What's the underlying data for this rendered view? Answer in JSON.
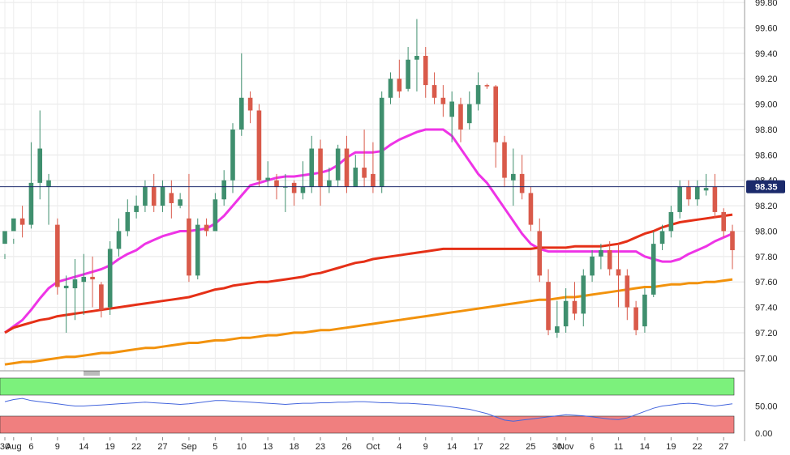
{
  "chart_data": {
    "type": "candlestick",
    "title": "",
    "instrument_price_label": "98.35",
    "y_axis": {
      "min": 96.9,
      "max": 99.82,
      "ticks": [
        "97.00",
        "97.20",
        "97.40",
        "97.60",
        "97.80",
        "98.00",
        "98.20",
        "98.40",
        "98.60",
        "98.80",
        "99.00",
        "99.20",
        "99.40",
        "99.60",
        "99.80"
      ]
    },
    "x_axis": {
      "labels": [
        {
          "label": "30",
          "index": 0
        },
        {
          "label": "Aug",
          "index": 1
        },
        {
          "label": "6",
          "index": 3
        },
        {
          "label": "9",
          "index": 6
        },
        {
          "label": "14",
          "index": 9
        },
        {
          "label": "19",
          "index": 12
        },
        {
          "label": "22",
          "index": 15
        },
        {
          "label": "27",
          "index": 18
        },
        {
          "label": "Sep",
          "index": 21
        },
        {
          "label": "5",
          "index": 24
        },
        {
          "label": "10",
          "index": 27
        },
        {
          "label": "13",
          "index": 30
        },
        {
          "label": "18",
          "index": 33
        },
        {
          "label": "23",
          "index": 36
        },
        {
          "label": "26",
          "index": 39
        },
        {
          "label": "Oct",
          "index": 42
        },
        {
          "label": "4",
          "index": 45
        },
        {
          "label": "9",
          "index": 48
        },
        {
          "label": "14",
          "index": 51
        },
        {
          "label": "17",
          "index": 54
        },
        {
          "label": "22",
          "index": 57
        },
        {
          "label": "25",
          "index": 60
        },
        {
          "label": "30",
          "index": 63
        },
        {
          "label": "Nov",
          "index": 64
        },
        {
          "label": "6",
          "index": 67
        },
        {
          "label": "11",
          "index": 70
        },
        {
          "label": "14",
          "index": 73
        },
        {
          "label": "19",
          "index": 76
        },
        {
          "label": "22",
          "index": 79
        },
        {
          "label": "27",
          "index": 82
        }
      ]
    },
    "candles_ohlc": [
      [
        97.9,
        98.0,
        97.78,
        97.82
      ],
      [
        98.0,
        98.1,
        97.9,
        97.94
      ],
      [
        98.1,
        98.05,
        98.2,
        97.95
      ],
      [
        98.05,
        98.38,
        98.7,
        98.02
      ],
      [
        98.38,
        98.65,
        98.95,
        98.25
      ],
      [
        98.35,
        98.4,
        98.45,
        98.05
      ],
      [
        98.05,
        97.56,
        98.1,
        97.5
      ],
      [
        97.55,
        97.57,
        97.65,
        97.2
      ],
      [
        97.55,
        97.62,
        97.78,
        97.3
      ],
      [
        97.6,
        97.64,
        97.82,
        97.34
      ],
      [
        97.64,
        97.62,
        97.8,
        97.4
      ],
      [
        97.58,
        97.38,
        97.6,
        97.32
      ],
      [
        97.4,
        97.86,
        97.92,
        97.34
      ],
      [
        97.86,
        98.0,
        98.1,
        97.8
      ],
      [
        98.0,
        98.15,
        98.25,
        97.96
      ],
      [
        98.15,
        98.2,
        98.28,
        98.1
      ],
      [
        98.2,
        98.35,
        98.4,
        98.15
      ],
      [
        98.35,
        98.2,
        98.45,
        98.15
      ],
      [
        98.2,
        98.35,
        98.4,
        98.15
      ],
      [
        98.3,
        98.22,
        98.4,
        98.1
      ],
      [
        98.2,
        98.25,
        98.3,
        98.18
      ],
      [
        98.1,
        97.65,
        98.45,
        97.6
      ],
      [
        97.65,
        98.05,
        98.1,
        97.62
      ],
      [
        98.05,
        98.0,
        98.1,
        97.96
      ],
      [
        98.0,
        98.25,
        98.3,
        98.0
      ],
      [
        98.25,
        98.4,
        98.48,
        98.2
      ],
      [
        98.4,
        98.8,
        98.85,
        98.3
      ],
      [
        98.8,
        99.05,
        99.4,
        98.75
      ],
      [
        99.05,
        98.95,
        99.1,
        98.85
      ],
      [
        98.95,
        98.4,
        99.0,
        98.35
      ],
      [
        98.4,
        98.42,
        98.55,
        98.35
      ],
      [
        98.4,
        98.35,
        98.45,
        98.25
      ],
      [
        98.35,
        98.35,
        98.45,
        98.15
      ],
      [
        98.38,
        98.3,
        98.4,
        98.2
      ],
      [
        98.3,
        98.35,
        98.55,
        98.25
      ],
      [
        98.35,
        98.65,
        98.75,
        98.3
      ],
      [
        98.65,
        98.35,
        98.72,
        98.2
      ],
      [
        98.35,
        98.4,
        98.5,
        98.3
      ],
      [
        98.4,
        98.65,
        98.68,
        98.35
      ],
      [
        98.65,
        98.35,
        98.75,
        98.3
      ],
      [
        98.35,
        98.5,
        98.6,
        98.35
      ],
      [
        98.5,
        98.42,
        98.8,
        98.35
      ],
      [
        98.45,
        98.35,
        98.7,
        98.3
      ],
      [
        98.35,
        99.05,
        99.1,
        98.3
      ],
      [
        99.05,
        99.2,
        99.25,
        99.0
      ],
      [
        99.2,
        99.1,
        99.35,
        99.05
      ],
      [
        99.12,
        99.35,
        99.45,
        99.1
      ],
      [
        99.35,
        99.38,
        99.67,
        99.1
      ],
      [
        99.38,
        99.15,
        99.45,
        99.05
      ],
      [
        99.15,
        99.05,
        99.25,
        99.0
      ],
      [
        99.05,
        99.0,
        99.15,
        98.9
      ],
      [
        98.9,
        99.02,
        99.1,
        98.7
      ],
      [
        99.0,
        98.8,
        99.05,
        98.7
      ],
      [
        98.85,
        99.0,
        99.1,
        98.8
      ],
      [
        99.0,
        99.15,
        99.25,
        98.95
      ],
      [
        99.15,
        99.14,
        99.16,
        99.12
      ],
      [
        99.14,
        98.7,
        99.15,
        98.5
      ],
      [
        98.7,
        98.42,
        98.75,
        98.35
      ],
      [
        98.4,
        98.45,
        98.65,
        98.2
      ],
      [
        98.45,
        98.3,
        98.6,
        98.25
      ],
      [
        98.3,
        98.05,
        98.35,
        98.0
      ],
      [
        98.0,
        97.65,
        98.1,
        97.6
      ],
      [
        97.6,
        97.22,
        97.7,
        97.18
      ],
      [
        97.2,
        97.25,
        97.45,
        97.16
      ],
      [
        97.25,
        97.45,
        97.55,
        97.2
      ],
      [
        97.45,
        97.35,
        97.6,
        97.3
      ],
      [
        97.35,
        97.65,
        97.7,
        97.25
      ],
      [
        97.65,
        97.8,
        97.85,
        97.6
      ],
      [
        97.8,
        97.85,
        97.9,
        97.7
      ],
      [
        97.85,
        97.7,
        97.92,
        97.65
      ],
      [
        97.7,
        97.65,
        97.9,
        97.4
      ],
      [
        97.65,
        97.4,
        97.7,
        97.3
      ],
      [
        97.4,
        97.22,
        97.45,
        97.18
      ],
      [
        97.25,
        97.5,
        97.55,
        97.2
      ],
      [
        97.5,
        97.9,
        98.0,
        97.48
      ],
      [
        97.9,
        98.0,
        98.05,
        97.85
      ],
      [
        98.0,
        98.15,
        98.2,
        97.95
      ],
      [
        98.15,
        98.35,
        98.4,
        98.1
      ],
      [
        98.35,
        98.25,
        98.4,
        98.2
      ],
      [
        98.25,
        98.35,
        98.4,
        98.2
      ],
      [
        98.32,
        98.34,
        98.45,
        98.28
      ],
      [
        98.35,
        98.15,
        98.45,
        98.1
      ],
      [
        98.15,
        98.0,
        98.18,
        97.95
      ],
      [
        98.0,
        97.85,
        98.05,
        97.7
      ]
    ],
    "series": [
      {
        "color": "#ee34e6",
        "values": [
          97.2,
          97.25,
          97.3,
          97.38,
          97.47,
          97.55,
          97.6,
          97.62,
          97.64,
          97.66,
          97.68,
          97.7,
          97.73,
          97.78,
          97.82,
          97.85,
          97.9,
          97.93,
          97.96,
          97.98,
          98.0,
          98.0,
          98.01,
          98.02,
          98.06,
          98.12,
          98.2,
          98.28,
          98.36,
          98.38,
          98.4,
          98.42,
          98.43,
          98.43,
          98.44,
          98.45,
          98.46,
          98.48,
          98.52,
          98.58,
          98.62,
          98.62,
          98.62,
          98.63,
          98.68,
          98.72,
          98.75,
          98.78,
          98.8,
          98.8,
          98.8,
          98.75,
          98.65,
          98.55,
          98.45,
          98.38,
          98.28,
          98.18,
          98.08,
          97.98,
          97.9,
          97.86,
          97.84,
          97.84,
          97.84,
          97.84,
          97.84,
          97.84,
          97.84,
          97.84,
          97.84,
          97.84,
          97.84,
          97.8,
          97.78,
          97.76,
          97.76,
          97.78,
          97.82,
          97.85,
          97.88,
          97.92,
          97.95,
          97.98
        ]
      },
      {
        "color": "#e53017",
        "values": [
          97.2,
          97.24,
          97.26,
          97.28,
          97.3,
          97.31,
          97.33,
          97.34,
          97.35,
          97.36,
          97.37,
          97.38,
          97.39,
          97.4,
          97.41,
          97.42,
          97.43,
          97.44,
          97.45,
          97.46,
          97.47,
          97.48,
          97.5,
          97.52,
          97.54,
          97.55,
          97.57,
          97.58,
          97.59,
          97.6,
          97.6,
          97.61,
          97.62,
          97.63,
          97.64,
          97.66,
          97.67,
          97.69,
          97.71,
          97.73,
          97.75,
          97.76,
          97.78,
          97.79,
          97.8,
          97.81,
          97.82,
          97.83,
          97.84,
          97.85,
          97.86,
          97.86,
          97.86,
          97.86,
          97.86,
          97.86,
          97.86,
          97.86,
          97.86,
          97.86,
          97.86,
          97.87,
          97.87,
          97.87,
          97.87,
          97.88,
          97.88,
          97.88,
          97.88,
          97.89,
          97.9,
          97.92,
          97.95,
          97.98,
          98.0,
          98.03,
          98.05,
          98.07,
          98.08,
          98.09,
          98.1,
          98.11,
          98.12,
          98.13
        ]
      },
      {
        "color": "#f2920c",
        "values": [
          96.95,
          96.96,
          96.97,
          96.97,
          96.98,
          96.99,
          97.0,
          97.01,
          97.01,
          97.02,
          97.03,
          97.04,
          97.04,
          97.05,
          97.06,
          97.07,
          97.08,
          97.08,
          97.09,
          97.1,
          97.11,
          97.12,
          97.12,
          97.13,
          97.14,
          97.14,
          97.15,
          97.16,
          97.16,
          97.17,
          97.18,
          97.18,
          97.19,
          97.2,
          97.2,
          97.21,
          97.22,
          97.22,
          97.23,
          97.24,
          97.25,
          97.26,
          97.27,
          97.28,
          97.29,
          97.3,
          97.31,
          97.32,
          97.33,
          97.34,
          97.35,
          97.36,
          97.37,
          97.38,
          97.39,
          97.4,
          97.41,
          97.42,
          97.43,
          97.44,
          97.45,
          97.46,
          97.46,
          97.47,
          97.48,
          97.48,
          97.49,
          97.5,
          97.51,
          97.52,
          97.53,
          97.54,
          97.55,
          97.56,
          97.56,
          97.57,
          97.58,
          97.58,
          97.59,
          97.59,
          97.6,
          97.6,
          97.61,
          97.62
        ]
      }
    ],
    "current_price": 98.35,
    "current_price_line_color": "#1b2a6b",
    "bull_color": "#3f8f6e",
    "bear_color": "#d95a4a",
    "oscillator": {
      "ticks": [
        "50.00",
        "0.00"
      ],
      "overbought_color": "#7cf17c",
      "oversold_color": "#f07f7f",
      "line_color": "#4466dd",
      "values": [
        58,
        62,
        64,
        60,
        58,
        56,
        54,
        52,
        50,
        50,
        51,
        52,
        53,
        54,
        55,
        56,
        57,
        56,
        55,
        54,
        53,
        54,
        56,
        58,
        60,
        60,
        59,
        58,
        57,
        56,
        55,
        54,
        53,
        54,
        55,
        55,
        56,
        56,
        57,
        57,
        58,
        58,
        57,
        56,
        56,
        55,
        55,
        54,
        53,
        52,
        50,
        48,
        46,
        44,
        40,
        36,
        30,
        24,
        22,
        24,
        26,
        28,
        30,
        32,
        34,
        33,
        32,
        30,
        28,
        26,
        25,
        28,
        34,
        40,
        46,
        50,
        52,
        54,
        55,
        54,
        52,
        50,
        52,
        54
      ]
    }
  }
}
